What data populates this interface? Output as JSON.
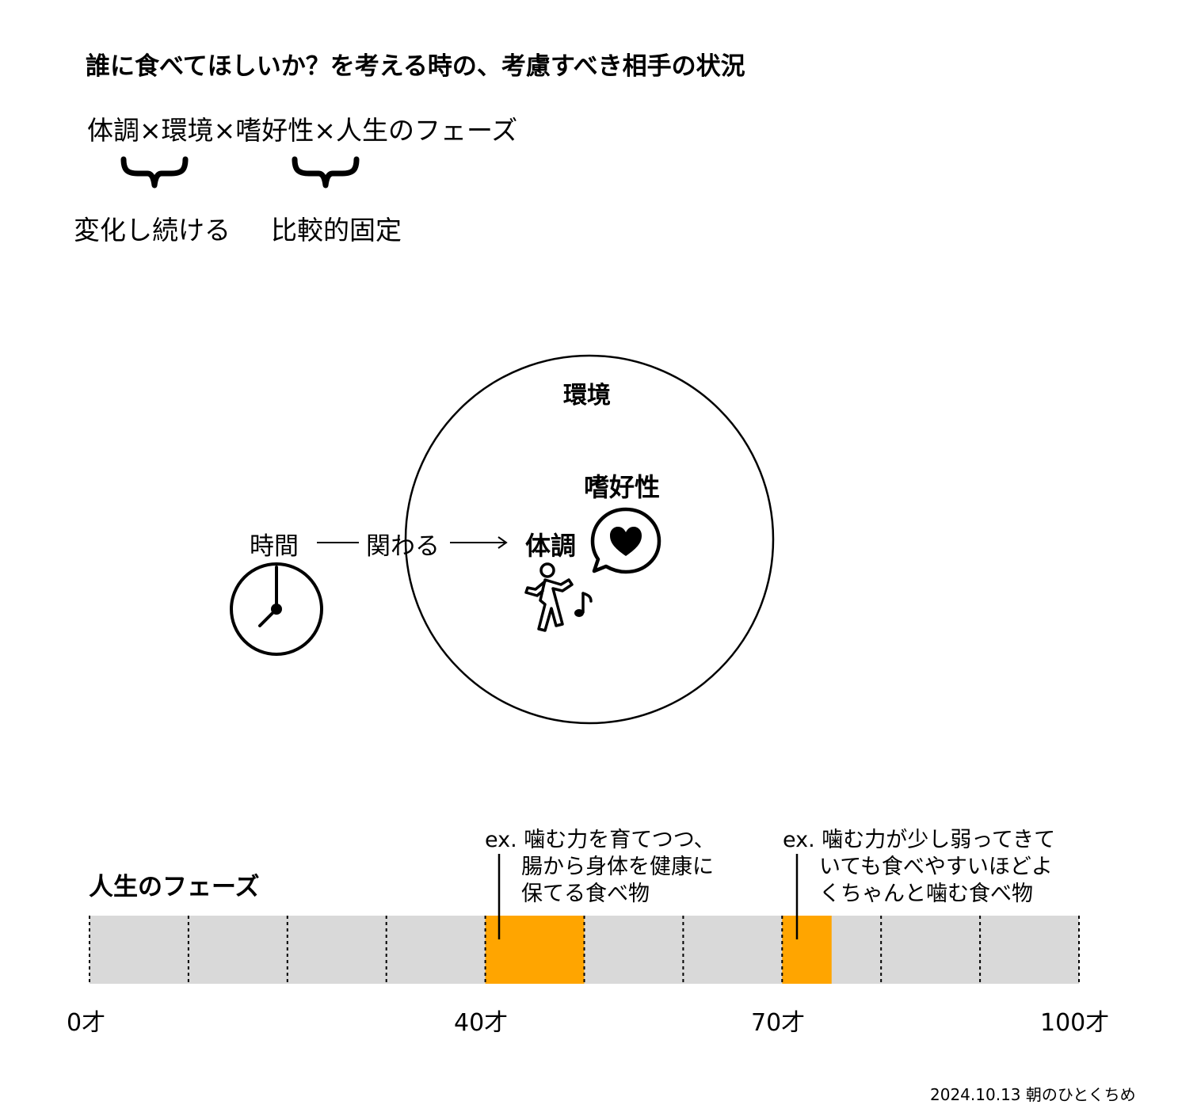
{
  "title": "誰に食べてほしいか？を考える時の、考慮すべき相手の状況",
  "formula": "体調×環境×嗜好性×人生のフェーズ",
  "brace_labels": {
    "left": "変化し続ける",
    "right": "比較的固定"
  },
  "diagram": {
    "circle_label": "環境",
    "time_label": "時間",
    "relation_label": "関わる",
    "condition_label": "体調",
    "preference_label": "嗜好性",
    "icons": [
      "clock-icon",
      "dancing-person-icon",
      "music-note-icon",
      "heart-speech-bubble-icon"
    ]
  },
  "life_phase": {
    "title": "人生のフェーズ",
    "segments": 10,
    "highlights": [
      {
        "start_age": 40,
        "end_age": 50
      },
      {
        "start_age": 70,
        "end_age": 75
      }
    ],
    "ticks": [
      "0才",
      "40才",
      "70才",
      "100才"
    ],
    "notes": [
      {
        "lines": [
          "ex. 噛む力を育てつつ、",
          "腸から身体を健康に",
          "保てる食べ物"
        ]
      },
      {
        "lines": [
          "ex. 噛む力が少し弱ってきて",
          "いても食べやすいほどよ",
          "くちゃんと噛む食べ物"
        ]
      }
    ],
    "colors": {
      "bar": "#d9d9d9",
      "highlight": "#ffa500"
    }
  },
  "footer": "2024.10.13 朝のひとくちめ"
}
